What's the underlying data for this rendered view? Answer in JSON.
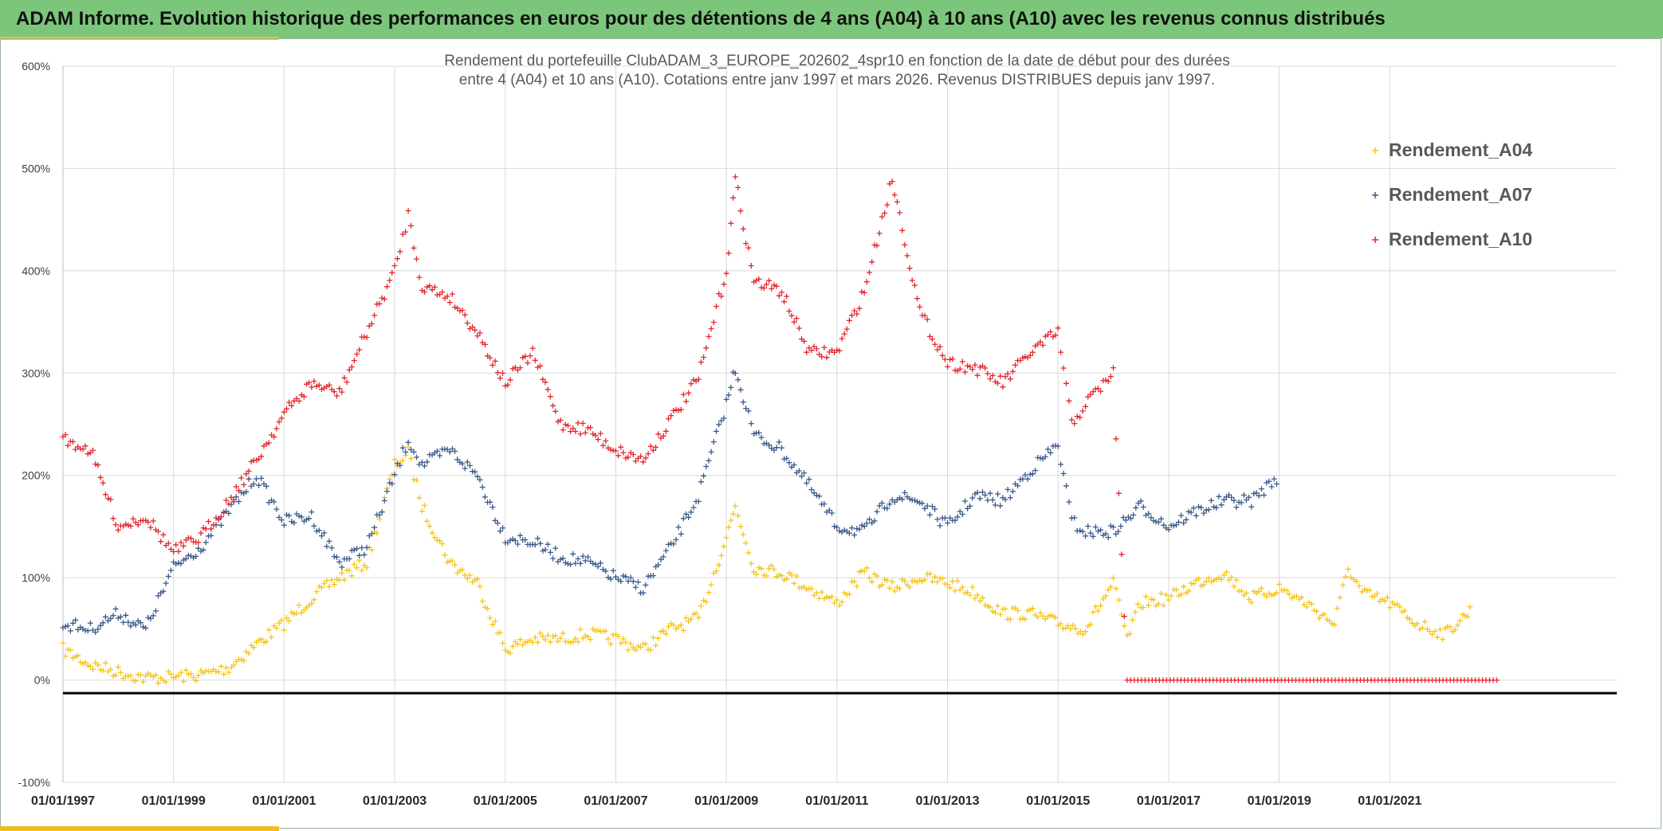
{
  "banner": {
    "title": "ADAM Informe. Evolution historique des performances en euros pour des détentions de 4 ans (A04) à 10 ans (A10) avec les revenus connus distribués"
  },
  "colors": {
    "banner": "#7bc67b",
    "accent": "#f2bd1e",
    "A04": "#f5c518",
    "A07": "#3b5a8c",
    "A10": "#e3262d"
  },
  "chart_data": {
    "type": "scatter",
    "title_lines": [
      "Rendement du portefeuille ClubADAM_3_EUROPE_202602_4spr10  en fonction de la date de début pour des durées",
      "entre 4 (A04) et 10 ans (A10). Cotations entre janv 1997 et mars 2026. Revenus DISTRIBUES depuis janv 1997."
    ],
    "marker": "+",
    "x_axis": {
      "type": "date",
      "range": [
        "1997-01-01",
        "2023-01-01"
      ],
      "tick_labels": [
        "01/01/1997",
        "01/01/1999",
        "01/01/2001",
        "01/01/2003",
        "01/01/2005",
        "01/01/2007",
        "01/01/2009",
        "01/01/2011",
        "01/01/2013",
        "01/01/2015",
        "01/01/2017",
        "01/01/2019",
        "01/01/2021"
      ]
    },
    "y_axis": {
      "range": [
        -100,
        600
      ],
      "unit": "%",
      "tick_labels": [
        "600%",
        "500%",
        "400%",
        "300%",
        "200%",
        "100%",
        "0%",
        "-100%"
      ]
    },
    "grid": true,
    "legend": {
      "position": "top-right"
    },
    "series": [
      {
        "name": "Rendement_A04",
        "color": "#f5c518",
        "points": [
          [
            "1997-01-01",
            30
          ],
          [
            "1997-07-01",
            15
          ],
          [
            "1998-01-01",
            8
          ],
          [
            "1998-07-01",
            2
          ],
          [
            "1999-01-01",
            3
          ],
          [
            "1999-07-01",
            5
          ],
          [
            "2000-01-01",
            12
          ],
          [
            "2000-07-01",
            35
          ],
          [
            "2001-01-01",
            55
          ],
          [
            "2001-07-01",
            80
          ],
          [
            "2002-01-01",
            100
          ],
          [
            "2002-07-01",
            115
          ],
          [
            "2003-01-01",
            210
          ],
          [
            "2003-04-01",
            222
          ],
          [
            "2003-07-01",
            170
          ],
          [
            "2004-01-01",
            115
          ],
          [
            "2004-07-01",
            95
          ],
          [
            "2005-01-01",
            30
          ],
          [
            "2005-07-01",
            40
          ],
          [
            "2006-01-01",
            40
          ],
          [
            "2006-07-01",
            45
          ],
          [
            "2007-01-01",
            40
          ],
          [
            "2007-07-01",
            30
          ],
          [
            "2008-01-01",
            50
          ],
          [
            "2008-07-01",
            60
          ],
          [
            "2009-01-01",
            140
          ],
          [
            "2009-03-01",
            170
          ],
          [
            "2009-07-01",
            110
          ],
          [
            "2010-01-01",
            105
          ],
          [
            "2010-07-01",
            90
          ],
          [
            "2011-01-01",
            75
          ],
          [
            "2011-07-01",
            105
          ],
          [
            "2012-01-01",
            90
          ],
          [
            "2012-07-01",
            100
          ],
          [
            "2013-01-01",
            95
          ],
          [
            "2013-07-01",
            85
          ],
          [
            "2014-01-01",
            65
          ],
          [
            "2014-07-01",
            65
          ],
          [
            "2015-01-01",
            55
          ],
          [
            "2015-07-01",
            50
          ],
          [
            "2016-01-01",
            95
          ],
          [
            "2016-04-01",
            40
          ],
          [
            "2016-07-01",
            75
          ],
          [
            "2017-01-01",
            80
          ],
          [
            "2017-07-01",
            95
          ],
          [
            "2018-01-01",
            105
          ],
          [
            "2018-07-01",
            80
          ],
          [
            "2019-01-01",
            90
          ],
          [
            "2019-07-01",
            75
          ],
          [
            "2020-01-01",
            55
          ],
          [
            "2020-04-01",
            110
          ],
          [
            "2020-07-01",
            85
          ],
          [
            "2021-01-01",
            75
          ],
          [
            "2021-07-01",
            55
          ],
          [
            "2022-01-01",
            45
          ],
          [
            "2022-07-01",
            70
          ]
        ]
      },
      {
        "name": "Rendement_A07",
        "color": "#3b5a8c",
        "points": [
          [
            "1997-01-01",
            55
          ],
          [
            "1997-07-01",
            50
          ],
          [
            "1998-01-01",
            65
          ],
          [
            "1998-07-01",
            50
          ],
          [
            "1999-01-01",
            110
          ],
          [
            "1999-07-01",
            130
          ],
          [
            "2000-01-01",
            165
          ],
          [
            "2000-07-01",
            200
          ],
          [
            "2001-01-01",
            155
          ],
          [
            "2001-07-01",
            160
          ],
          [
            "2002-01-01",
            115
          ],
          [
            "2002-07-01",
            130
          ],
          [
            "2003-01-01",
            200
          ],
          [
            "2003-04-01",
            235
          ],
          [
            "2003-07-01",
            210
          ],
          [
            "2004-01-01",
            225
          ],
          [
            "2004-07-01",
            200
          ],
          [
            "2005-01-01",
            140
          ],
          [
            "2005-07-01",
            135
          ],
          [
            "2006-01-01",
            120
          ],
          [
            "2006-07-01",
            115
          ],
          [
            "2007-01-01",
            100
          ],
          [
            "2007-07-01",
            90
          ],
          [
            "2008-01-01",
            130
          ],
          [
            "2008-07-01",
            180
          ],
          [
            "2009-01-01",
            270
          ],
          [
            "2009-03-01",
            305
          ],
          [
            "2009-07-01",
            240
          ],
          [
            "2010-01-01",
            225
          ],
          [
            "2010-07-01",
            190
          ],
          [
            "2011-01-01",
            150
          ],
          [
            "2011-07-01",
            145
          ],
          [
            "2012-01-01",
            180
          ],
          [
            "2012-07-01",
            175
          ],
          [
            "2013-01-01",
            150
          ],
          [
            "2013-07-01",
            180
          ],
          [
            "2014-01-01",
            175
          ],
          [
            "2014-07-01",
            205
          ],
          [
            "2015-01-01",
            230
          ],
          [
            "2015-04-01",
            155
          ],
          [
            "2015-07-01",
            145
          ],
          [
            "2016-01-01",
            145
          ],
          [
            "2016-07-01",
            170
          ],
          [
            "2017-01-01",
            150
          ],
          [
            "2017-07-01",
            165
          ],
          [
            "2018-01-01",
            175
          ],
          [
            "2018-07-01",
            175
          ],
          [
            "2019-01-01",
            200
          ]
        ]
      },
      {
        "name": "Rendement_A10",
        "color": "#e3262d",
        "points": [
          [
            "1997-01-01",
            235
          ],
          [
            "1997-07-01",
            225
          ],
          [
            "1998-01-01",
            150
          ],
          [
            "1998-07-01",
            160
          ],
          [
            "1999-01-01",
            125
          ],
          [
            "1999-07-01",
            140
          ],
          [
            "2000-01-01",
            175
          ],
          [
            "2000-07-01",
            215
          ],
          [
            "2001-01-01",
            260
          ],
          [
            "2001-07-01",
            290
          ],
          [
            "2002-01-01",
            280
          ],
          [
            "2002-07-01",
            340
          ],
          [
            "2003-01-01",
            400
          ],
          [
            "2003-04-01",
            455
          ],
          [
            "2003-07-01",
            385
          ],
          [
            "2004-01-01",
            375
          ],
          [
            "2004-07-01",
            340
          ],
          [
            "2005-01-01",
            290
          ],
          [
            "2005-07-01",
            320
          ],
          [
            "2006-01-01",
            250
          ],
          [
            "2006-07-01",
            245
          ],
          [
            "2007-01-01",
            225
          ],
          [
            "2007-07-01",
            215
          ],
          [
            "2008-01-01",
            255
          ],
          [
            "2008-07-01",
            295
          ],
          [
            "2009-01-01",
            400
          ],
          [
            "2009-03-01",
            490
          ],
          [
            "2009-07-01",
            390
          ],
          [
            "2010-01-01",
            380
          ],
          [
            "2010-07-01",
            320
          ],
          [
            "2011-01-01",
            320
          ],
          [
            "2011-07-01",
            380
          ],
          [
            "2012-01-01",
            490
          ],
          [
            "2012-07-01",
            360
          ],
          [
            "2013-01-01",
            310
          ],
          [
            "2013-07-01",
            305
          ],
          [
            "2014-01-01",
            290
          ],
          [
            "2014-07-01",
            320
          ],
          [
            "2015-01-01",
            340
          ],
          [
            "2015-04-01",
            250
          ],
          [
            "2015-07-01",
            270
          ],
          [
            "2016-01-01",
            300
          ],
          [
            "2016-04-01",
            0
          ],
          [
            "2023-01-01",
            0
          ]
        ]
      }
    ]
  }
}
